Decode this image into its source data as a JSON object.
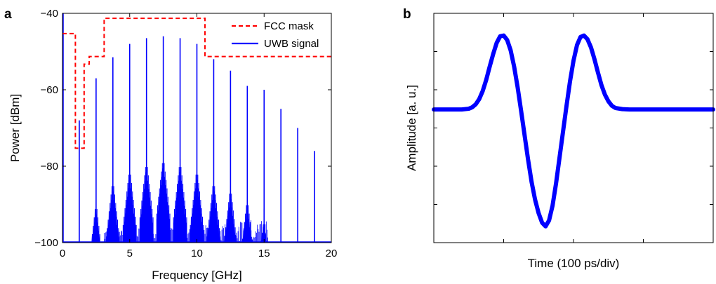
{
  "chart_data": [
    {
      "panel_label": "a",
      "type": "line",
      "xlabel": "Frequency [GHz]",
      "ylabel": "Power [dBm]",
      "xlim": [
        0,
        20
      ],
      "ylim": [
        -100,
        -40
      ],
      "x_ticks": [
        "0",
        "5",
        "10",
        "15",
        "20"
      ],
      "y_ticks": [
        "−100",
        "−80",
        "−60",
        "−40"
      ],
      "grid": false,
      "legend_position": "top-right",
      "series": [
        {
          "name": "FCC mask",
          "style": "dashed",
          "color": "#ff0000",
          "x": [
            0,
            0.96,
            0.96,
            1.61,
            1.61,
            1.99,
            1.99,
            3.1,
            3.1,
            10.6,
            10.6,
            20
          ],
          "y": [
            -45.3,
            -45.3,
            -75.3,
            -75.3,
            -53.3,
            -53.3,
            -51.3,
            -51.3,
            -41.3,
            -41.3,
            -51.3,
            -51.3
          ]
        },
        {
          "name": "UWB signal",
          "style": "solid",
          "color": "#0000ff",
          "tones": [
            {
              "f": 0.05,
              "p": -40
            },
            {
              "f": 1.25,
              "p": -68
            },
            {
              "f": 2.5,
              "p": -57
            },
            {
              "f": 3.75,
              "p": -51.5
            },
            {
              "f": 5.0,
              "p": -48
            },
            {
              "f": 6.25,
              "p": -46.5
            },
            {
              "f": 7.5,
              "p": -46
            },
            {
              "f": 8.75,
              "p": -46.5
            },
            {
              "f": 10.0,
              "p": -48
            },
            {
              "f": 11.25,
              "p": -52
            },
            {
              "f": 12.5,
              "p": -55
            },
            {
              "f": 13.75,
              "p": -59
            },
            {
              "f": 15.0,
              "p": -60
            },
            {
              "f": 16.25,
              "p": -65
            },
            {
              "f": 17.5,
              "p": -70
            },
            {
              "f": 18.75,
              "p": -76
            }
          ],
          "sidebands": [
            {
              "f": 2.5,
              "p": -89
            },
            {
              "f": 3.75,
              "p": -83
            },
            {
              "f": 5.0,
              "p": -80
            },
            {
              "f": 6.25,
              "p": -78
            },
            {
              "f": 7.5,
              "p": -77
            },
            {
              "f": 8.75,
              "p": -78
            },
            {
              "f": 10.0,
              "p": -80
            },
            {
              "f": 11.25,
              "p": -83
            },
            {
              "f": 12.5,
              "p": -85
            },
            {
              "f": 13.75,
              "p": -88
            },
            {
              "f": 15.0,
              "p": -93
            }
          ]
        }
      ]
    },
    {
      "panel_label": "b",
      "type": "line",
      "xlabel": "Time (100 ps/div)",
      "ylabel": "Amplitude [a. u.]",
      "x_divisions": 4,
      "y_divisions": 6,
      "grid": false,
      "series": [
        {
          "color": "#0000ff",
          "shape": "monocycle",
          "x": [
            0.0,
            0.2,
            0.4,
            0.5,
            0.55,
            0.6,
            0.65,
            0.7,
            0.75,
            0.8,
            0.85,
            0.9,
            0.95,
            1.0,
            1.05,
            1.1,
            1.15,
            1.2,
            1.25,
            1.3,
            1.35,
            1.4,
            1.45,
            1.5,
            1.55,
            1.6,
            1.65,
            1.7,
            1.75,
            1.8,
            1.85,
            1.9,
            1.95,
            2.0,
            2.05,
            2.1,
            2.15,
            2.2,
            2.25,
            2.3,
            2.35,
            2.4,
            2.45,
            2.5,
            2.55,
            2.6,
            2.7,
            2.8,
            3.0,
            3.5,
            4.0
          ],
          "y": [
            0,
            0,
            0,
            0.01,
            0.03,
            0.07,
            0.14,
            0.25,
            0.4,
            0.58,
            0.75,
            0.9,
            0.99,
            1.0,
            0.94,
            0.8,
            0.58,
            0.3,
            -0.02,
            -0.35,
            -0.68,
            -0.98,
            -1.22,
            -1.4,
            -1.53,
            -1.58,
            -1.5,
            -1.3,
            -1.0,
            -0.65,
            -0.3,
            0.05,
            0.38,
            0.66,
            0.87,
            0.98,
            1.0,
            0.95,
            0.84,
            0.68,
            0.5,
            0.33,
            0.2,
            0.11,
            0.05,
            0.02,
            0.005,
            0,
            0,
            0,
            0
          ]
        }
      ]
    }
  ]
}
